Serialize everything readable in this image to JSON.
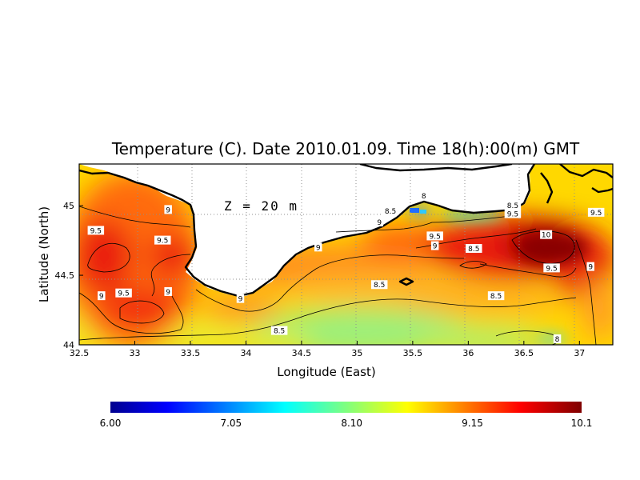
{
  "chart_data": {
    "type": "heatmap",
    "title": "Temperature (C). Date 2010.01.09. Time 18(h):00(m) GMT",
    "annotation": "Z = 20 m",
    "xlabel": "Longitude (East)",
    "ylabel": "Latitude (North)",
    "xlim": [
      32.5,
      37.3
    ],
    "ylim": [
      44.0,
      45.3
    ],
    "x_ticks": [
      "32.5",
      "33",
      "33.5",
      "34",
      "34.5",
      "35",
      "35.5",
      "36",
      "36.5",
      "37"
    ],
    "y_ticks": [
      "44",
      "44.5",
      "45"
    ],
    "colorbar": {
      "min": 6.0,
      "max": 10.1,
      "labels": [
        "6.00",
        "7.05",
        "8.10",
        "9.15",
        "10.1"
      ]
    },
    "contour_labels": [
      {
        "text": "9",
        "x": 33.3,
        "y": 44.97
      },
      {
        "text": "9.5",
        "x": 32.65,
        "y": 44.82
      },
      {
        "text": "9.5",
        "x": 33.25,
        "y": 44.75
      },
      {
        "text": "9",
        "x": 32.7,
        "y": 44.35
      },
      {
        "text": "9.5",
        "x": 32.9,
        "y": 44.37
      },
      {
        "text": "9",
        "x": 33.3,
        "y": 44.38
      },
      {
        "text": "9",
        "x": 33.95,
        "y": 44.33
      },
      {
        "text": "8.5",
        "x": 34.3,
        "y": 44.1
      },
      {
        "text": "9",
        "x": 34.65,
        "y": 44.7
      },
      {
        "text": "8.5",
        "x": 35.2,
        "y": 44.43
      },
      {
        "text": "9",
        "x": 35.2,
        "y": 44.88
      },
      {
        "text": "8.5",
        "x": 35.3,
        "y": 44.96
      },
      {
        "text": "8",
        "x": 35.6,
        "y": 45.07
      },
      {
        "text": "9.5",
        "x": 35.7,
        "y": 44.78
      },
      {
        "text": "9",
        "x": 35.7,
        "y": 44.71
      },
      {
        "text": "8.5",
        "x": 36.05,
        "y": 44.69
      },
      {
        "text": "8.5",
        "x": 36.25,
        "y": 44.35
      },
      {
        "text": "8.5",
        "x": 36.4,
        "y": 45.0
      },
      {
        "text": "9.5",
        "x": 36.4,
        "y": 44.94
      },
      {
        "text": "10",
        "x": 36.7,
        "y": 44.79
      },
      {
        "text": "9.5",
        "x": 36.75,
        "y": 44.55
      },
      {
        "text": "9",
        "x": 37.1,
        "y": 44.56
      },
      {
        "text": "9.5",
        "x": 37.15,
        "y": 44.95
      },
      {
        "text": "8",
        "x": 36.8,
        "y": 44.04
      }
    ]
  }
}
